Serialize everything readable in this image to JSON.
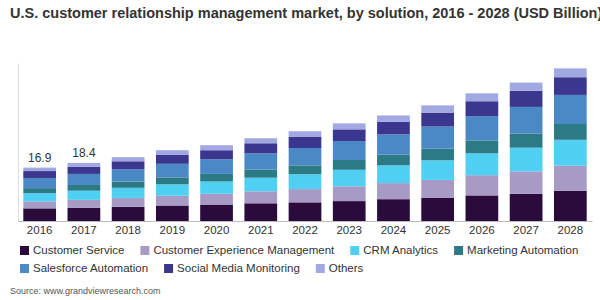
{
  "chart_data": {
    "type": "bar",
    "stacked": true,
    "title": "U.S. customer relationship management market, by solution, 2016 - 2028 (USD Billion)",
    "source": "Source: www.grandviewresearch.com",
    "categories": [
      "2016",
      "2017",
      "2018",
      "2019",
      "2020",
      "2021",
      "2022",
      "2023",
      "2024",
      "2025",
      "2026",
      "2027",
      "2028"
    ],
    "series": [
      {
        "name": "Customer Service",
        "color": "#2a0b3c",
        "values": [
          4.0,
          4.2,
          4.5,
          4.9,
          5.2,
          5.6,
          5.9,
          6.3,
          6.9,
          7.3,
          8.1,
          8.6,
          9.6
        ]
      },
      {
        "name": "Customer Experience Management",
        "color": "#a79bc6",
        "values": [
          2.2,
          2.5,
          2.8,
          3.1,
          3.4,
          3.8,
          4.2,
          4.7,
          5.1,
          5.7,
          6.4,
          7.1,
          7.9
        ]
      },
      {
        "name": "CRM Analytics",
        "color": "#4fd0f2",
        "values": [
          2.6,
          2.9,
          3.2,
          3.6,
          3.9,
          4.3,
          4.7,
          5.2,
          5.6,
          6.2,
          6.9,
          7.5,
          8.2
        ]
      },
      {
        "name": "Marketing Automation",
        "color": "#2c7a85",
        "values": [
          1.6,
          1.8,
          2.0,
          2.2,
          2.4,
          2.6,
          2.8,
          3.1,
          3.4,
          3.7,
          4.1,
          4.5,
          5.0
        ]
      },
      {
        "name": "Salesforce Automation",
        "color": "#4a89c6",
        "values": [
          3.2,
          3.5,
          3.9,
          4.3,
          4.6,
          5.1,
          5.5,
          6.0,
          6.4,
          7.0,
          7.7,
          8.4,
          9.2
        ]
      },
      {
        "name": "Social Media Monitoring",
        "color": "#3b378f",
        "values": [
          2.2,
          2.3,
          2.5,
          2.8,
          2.9,
          3.2,
          3.5,
          3.7,
          4.0,
          4.4,
          4.7,
          5.1,
          5.6
        ]
      },
      {
        "name": "Others",
        "color": "#a2a9e2",
        "values": [
          1.1,
          1.2,
          1.3,
          1.5,
          1.6,
          1.6,
          1.8,
          1.9,
          2.0,
          2.3,
          2.5,
          2.6,
          2.8
        ]
      }
    ],
    "totals": [
      16.9,
      18.4,
      null,
      null,
      null,
      null,
      null,
      null,
      null,
      null,
      null,
      null,
      null
    ],
    "ylim": [
      0,
      50
    ],
    "tick_labels": "x",
    "grid": false,
    "legend": "bottom"
  }
}
